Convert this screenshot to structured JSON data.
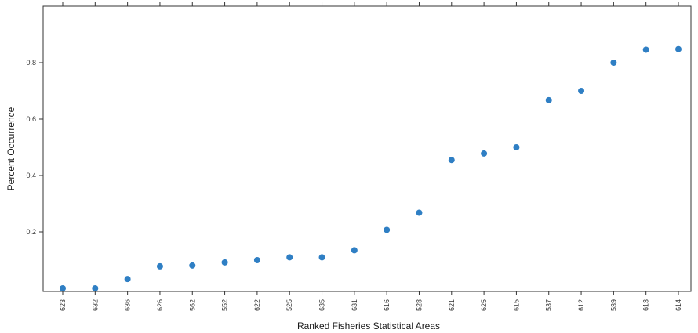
{
  "chart_data": {
    "type": "scatter",
    "title": "",
    "xlabel": "Ranked Fisheries Statistical Areas",
    "ylabel": "Percent Occurrence",
    "categories": [
      "623",
      "632",
      "636",
      "626",
      "562",
      "552",
      "622",
      "525",
      "635",
      "631",
      "616",
      "528",
      "621",
      "625",
      "615",
      "537",
      "612",
      "539",
      "613",
      "614"
    ],
    "y_ticks": [
      "0.2",
      "0.4",
      "0.6",
      "0.8"
    ],
    "ylim": [
      0,
      0.9
    ],
    "grid": false,
    "series": [
      {
        "values": [
          0.0,
          0.0,
          0.033,
          0.078,
          0.081,
          0.092,
          0.1,
          0.11,
          0.11,
          0.135,
          0.207,
          0.268,
          0.455,
          0.478,
          0.5,
          0.667,
          0.7,
          0.8,
          0.846,
          0.848
        ],
        "color": "#2f7fc4"
      }
    ]
  }
}
